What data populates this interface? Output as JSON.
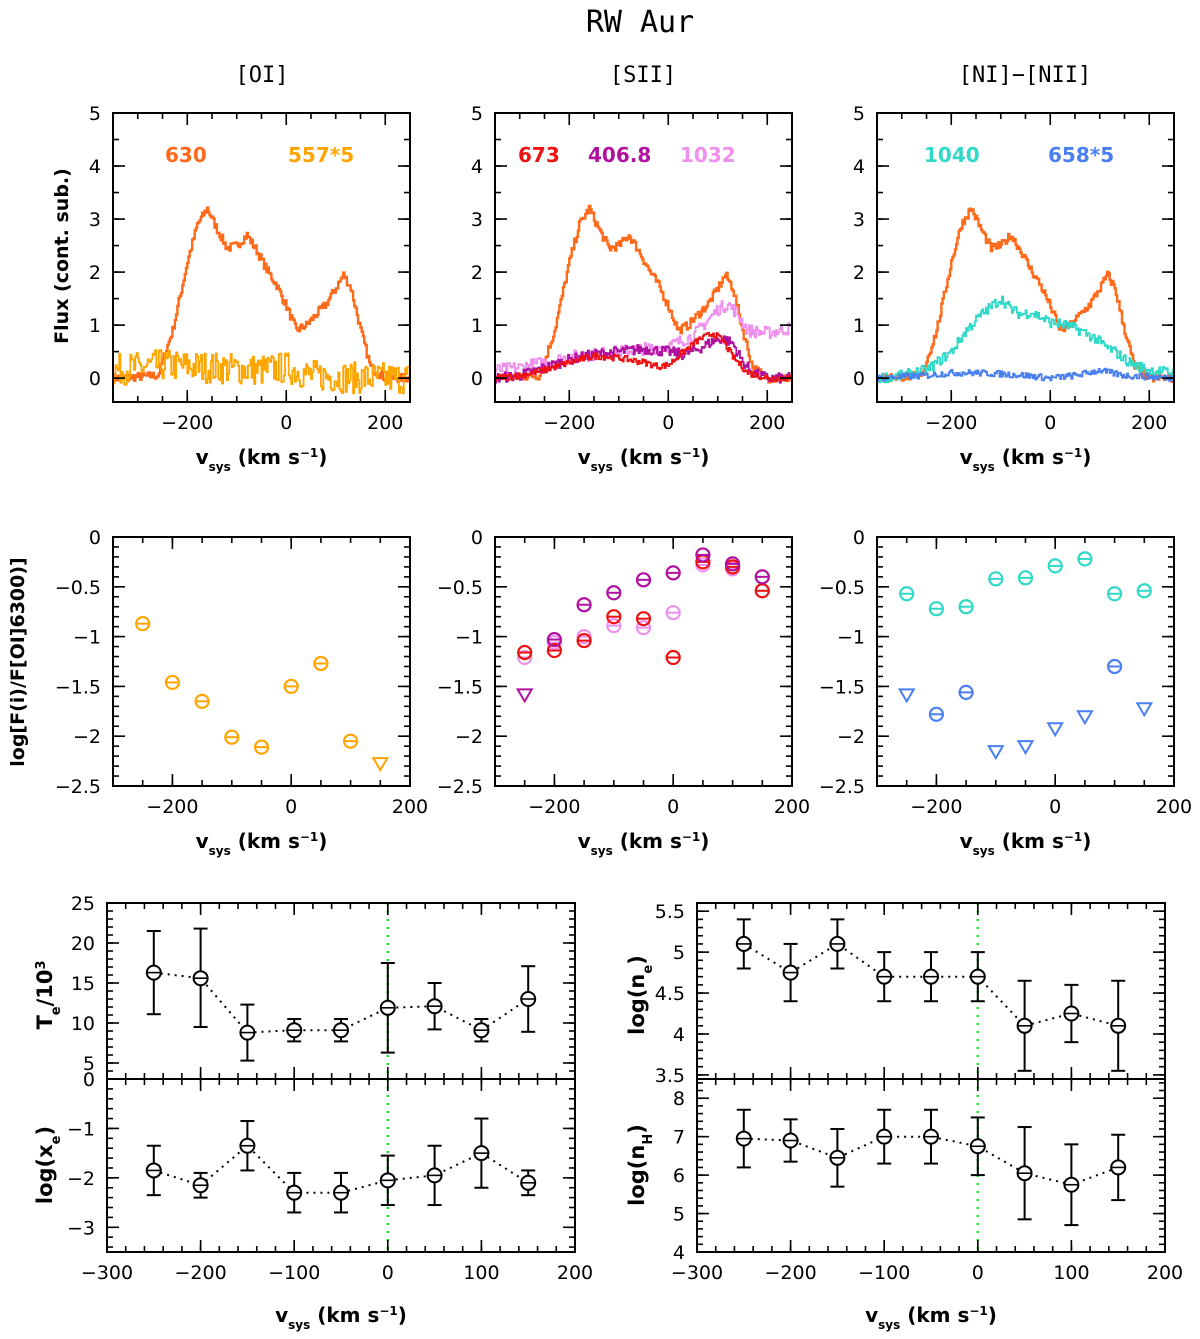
{
  "figure": {
    "title": "RW Aur",
    "columns": [
      "[OI]",
      "[SII]",
      "[NI]−[NII]"
    ],
    "xlabel_parts": {
      "v": "v",
      "sub": "sys",
      "unit": " (km s",
      "exp": "−1",
      "close": ")"
    },
    "spectra_ylabel": "Flux (cont. sub.)",
    "ratio_ylabel": "log[F(i)/F[OI]6300)]"
  },
  "colors": {
    "oi630": "#ff6a1a",
    "oi557": "#ffa500",
    "sii673": "#ee1111",
    "sii406": "#b0109e",
    "sii1032": "#ee90ee",
    "ni1040": "#30d8c8",
    "nii658": "#4a7ff0",
    "green": "#22dd22"
  },
  "chart_data": [
    {
      "type": "line",
      "panel": "spectra-oi",
      "title": "[OI]",
      "xlim": [
        -350,
        250
      ],
      "ylim": [
        -0.45,
        5
      ],
      "xticks": [
        -200,
        0,
        200
      ],
      "yticks": [
        0,
        1,
        2,
        3,
        4,
        5
      ],
      "xlabel": "vsys (km s−1)",
      "ylabel": "Flux (cont. sub.)",
      "series": [
        {
          "name": "630",
          "color": "#ff6a1a",
          "noise": 0.08,
          "x": [
            -350,
            -260,
            -230,
            -200,
            -180,
            -160,
            -140,
            -120,
            -100,
            -80,
            -60,
            -40,
            -20,
            0,
            20,
            40,
            60,
            80,
            100,
            115,
            130,
            150,
            170,
            200,
            250
          ],
          "y": [
            0,
            0.05,
            0.9,
            2.2,
            2.9,
            3.2,
            2.8,
            2.45,
            2.5,
            2.7,
            2.4,
            2.05,
            1.75,
            1.35,
            0.9,
            1.0,
            1.2,
            1.4,
            1.7,
            1.95,
            1.7,
            0.9,
            0.2,
            0,
            0
          ]
        },
        {
          "name": "557*5",
          "color": "#ffa500",
          "noise": 0.3,
          "x": [
            -350,
            -250,
            -150,
            -50,
            0,
            50,
            150,
            250
          ],
          "y": [
            0.15,
            0.25,
            0.2,
            0.15,
            0.2,
            0.05,
            0,
            0
          ]
        }
      ]
    },
    {
      "type": "line",
      "panel": "spectra-sii",
      "title": "[SII]",
      "xlim": [
        -350,
        250
      ],
      "ylim": [
        -0.45,
        5
      ],
      "xticks": [
        -200,
        0,
        200
      ],
      "yticks": [
        0,
        1,
        2,
        3,
        4,
        5
      ],
      "xlabel": "vsys (km s−1)",
      "ylabel": "",
      "series": [
        {
          "name": "630",
          "color": "#ff6a1a",
          "noise": 0.08,
          "x": [
            -350,
            -260,
            -230,
            -200,
            -180,
            -160,
            -140,
            -120,
            -100,
            -80,
            -60,
            -40,
            -20,
            0,
            20,
            40,
            60,
            80,
            100,
            115,
            130,
            150,
            170,
            200,
            250
          ],
          "y": [
            0,
            0.05,
            0.9,
            2.2,
            2.9,
            3.2,
            2.8,
            2.45,
            2.5,
            2.7,
            2.4,
            2.05,
            1.75,
            1.35,
            0.9,
            1.0,
            1.2,
            1.4,
            1.7,
            1.95,
            1.7,
            0.9,
            0.2,
            0,
            0
          ]
        },
        {
          "name": "1032",
          "color": "#ee90ee",
          "noise": 0.12,
          "x": [
            -350,
            -300,
            -250,
            -200,
            -150,
            -100,
            -50,
            0,
            50,
            80,
            100,
            120,
            140,
            160,
            200,
            250
          ],
          "y": [
            0.15,
            0.2,
            0.3,
            0.4,
            0.45,
            0.5,
            0.55,
            0.6,
            0.8,
            1.1,
            1.3,
            1.4,
            1.2,
            0.9,
            0.85,
            0.95
          ]
        },
        {
          "name": "406.8",
          "color": "#b0109e",
          "noise": 0.1,
          "x": [
            -350,
            -300,
            -250,
            -200,
            -150,
            -100,
            -50,
            0,
            30,
            60,
            90,
            110,
            130,
            150,
            170,
            200,
            250
          ],
          "y": [
            0,
            0.05,
            0.2,
            0.35,
            0.45,
            0.5,
            0.55,
            0.5,
            0.45,
            0.55,
            0.7,
            0.75,
            0.65,
            0.3,
            0.1,
            0,
            0
          ]
        },
        {
          "name": "673",
          "color": "#ee1111",
          "noise": 0.06,
          "x": [
            -350,
            -300,
            -250,
            -200,
            -150,
            -100,
            -50,
            -20,
            0,
            30,
            60,
            90,
            110,
            130,
            160,
            200,
            250
          ],
          "y": [
            0,
            0.05,
            0.15,
            0.3,
            0.42,
            0.38,
            0.3,
            0.22,
            0.25,
            0.5,
            0.72,
            0.85,
            0.7,
            0.4,
            0.1,
            0,
            0
          ]
        }
      ]
    },
    {
      "type": "line",
      "panel": "spectra-ni",
      "title": "[NI]−[NII]",
      "xlim": [
        -350,
        250
      ],
      "ylim": [
        -0.45,
        5
      ],
      "xticks": [
        -200,
        0,
        200
      ],
      "yticks": [
        0,
        1,
        2,
        3,
        4,
        5
      ],
      "xlabel": "vsys (km s−1)",
      "ylabel": "",
      "series": [
        {
          "name": "630",
          "color": "#ff6a1a",
          "noise": 0.08,
          "x": [
            -350,
            -260,
            -230,
            -200,
            -180,
            -160,
            -140,
            -120,
            -100,
            -80,
            -60,
            -40,
            -20,
            0,
            20,
            40,
            60,
            80,
            100,
            115,
            130,
            150,
            170,
            200,
            250
          ],
          "y": [
            0,
            0.05,
            0.9,
            2.2,
            2.9,
            3.2,
            2.8,
            2.45,
            2.5,
            2.7,
            2.4,
            2.05,
            1.75,
            1.35,
            0.9,
            1.0,
            1.2,
            1.4,
            1.7,
            1.95,
            1.7,
            0.9,
            0.2,
            0,
            0
          ]
        },
        {
          "name": "1040",
          "color": "#30d8c8",
          "noise": 0.1,
          "x": [
            -350,
            -300,
            -250,
            -200,
            -170,
            -140,
            -120,
            -100,
            -80,
            -60,
            -40,
            -20,
            0,
            30,
            60,
            90,
            110,
            130,
            150,
            170,
            200,
            250
          ],
          "y": [
            0,
            0.05,
            0.15,
            0.5,
            0.9,
            1.2,
            1.35,
            1.5,
            1.3,
            1.2,
            1.25,
            1.15,
            1.05,
            1.0,
            0.9,
            0.75,
            0.6,
            0.5,
            0.35,
            0.25,
            0.15,
            0.1
          ]
        },
        {
          "name": "658*5",
          "color": "#4a7ff0",
          "noise": 0.06,
          "x": [
            -350,
            -250,
            -200,
            -150,
            -100,
            -50,
            0,
            50,
            100,
            120,
            150,
            250
          ],
          "y": [
            0,
            0.05,
            0.1,
            0.1,
            0.08,
            0.05,
            0,
            0.05,
            0.15,
            0.1,
            0.05,
            0
          ]
        }
      ]
    },
    {
      "type": "scatter",
      "panel": "ratio-oi",
      "xlim": [
        -300,
        200
      ],
      "ylim": [
        -2.5,
        0
      ],
      "xticks": [
        -200,
        0,
        200
      ],
      "yticks": [
        0,
        -0.5,
        -1,
        -1.5,
        -2,
        -2.5
      ],
      "xlabel": "vsys (km s−1)",
      "ylabel": "log[F(i)/F[OI]6300)]",
      "series": [
        {
          "name": "557",
          "color": "#ffa500",
          "points": [
            [
              -250,
              -0.87
            ],
            [
              -200,
              -1.46
            ],
            [
              -150,
              -1.65
            ],
            [
              -100,
              -2.01
            ],
            [
              -50,
              -2.11
            ],
            [
              0,
              -1.5
            ],
            [
              50,
              -1.27
            ],
            [
              100,
              -2.05
            ]
          ],
          "upper_limits": [
            [
              150,
              -2.27
            ]
          ]
        }
      ]
    },
    {
      "type": "scatter",
      "panel": "ratio-sii",
      "xlim": [
        -300,
        200
      ],
      "ylim": [
        -2.5,
        0
      ],
      "xticks": [
        -200,
        0,
        200
      ],
      "yticks": [
        0,
        -0.5,
        -1,
        -1.5,
        -2,
        -2.5
      ],
      "xlabel": "vsys (km s−1)",
      "ylabel": "",
      "series": [
        {
          "name": "1032",
          "color": "#ee90ee",
          "points": [
            [
              -250,
              -1.21
            ],
            [
              -200,
              -1.06
            ],
            [
              -150,
              -1.0
            ],
            [
              -100,
              -0.89
            ],
            [
              -50,
              -0.91
            ],
            [
              0,
              -0.76
            ],
            [
              50,
              -0.28
            ],
            [
              100,
              -0.32
            ]
          ],
          "upper_limits": []
        },
        {
          "name": "673",
          "color": "#ee1111",
          "points": [
            [
              -250,
              -1.16
            ],
            [
              -200,
              -1.14
            ],
            [
              -150,
              -1.04
            ],
            [
              -100,
              -0.8
            ],
            [
              -50,
              -0.82
            ],
            [
              0,
              -1.21
            ],
            [
              50,
              -0.25
            ],
            [
              100,
              -0.3
            ],
            [
              150,
              -0.54
            ]
          ],
          "upper_limits": []
        },
        {
          "name": "406.8",
          "color": "#b0109e",
          "points": [
            [
              -200,
              -1.03
            ],
            [
              -150,
              -0.68
            ],
            [
              -100,
              -0.56
            ],
            [
              -50,
              -0.43
            ],
            [
              0,
              -0.36
            ],
            [
              50,
              -0.18
            ],
            [
              100,
              -0.27
            ],
            [
              150,
              -0.4
            ]
          ],
          "upper_limits": [
            [
              -250,
              -1.58
            ]
          ]
        }
      ]
    },
    {
      "type": "scatter",
      "panel": "ratio-ni",
      "xlim": [
        -300,
        200
      ],
      "ylim": [
        -2.5,
        0
      ],
      "xticks": [
        -200,
        0,
        200
      ],
      "yticks": [
        0,
        -0.5,
        -1,
        -1.5,
        -2,
        -2.5
      ],
      "xlabel": "vsys (km s−1)",
      "ylabel": "",
      "series": [
        {
          "name": "1040",
          "color": "#30d8c8",
          "points": [
            [
              -250,
              -0.57
            ],
            [
              -200,
              -0.72
            ],
            [
              -150,
              -0.7
            ],
            [
              -100,
              -0.42
            ],
            [
              -50,
              -0.41
            ],
            [
              0,
              -0.29
            ],
            [
              50,
              -0.22
            ],
            [
              100,
              -0.57
            ],
            [
              150,
              -0.54
            ]
          ],
          "upper_limits": []
        },
        {
          "name": "658",
          "color": "#4a7ff0",
          "points": [
            [
              -200,
              -1.78
            ],
            [
              -150,
              -1.56
            ],
            [
              100,
              -1.3
            ]
          ],
          "upper_limits": [
            [
              -250,
              -1.58
            ],
            [
              -100,
              -2.15
            ],
            [
              -50,
              -2.1
            ],
            [
              0,
              -1.92
            ],
            [
              50,
              -1.8
            ],
            [
              150,
              -1.72
            ]
          ]
        }
      ]
    },
    {
      "type": "scatter",
      "panel": "te",
      "ylabel": "Te/10³",
      "xlim": [
        -300,
        200
      ],
      "ylim": [
        3,
        25
      ],
      "yticks": [
        5,
        10,
        15,
        20,
        25
      ],
      "points": [
        [
          -250,
          16.3,
          11.1,
          21.5
        ],
        [
          -200,
          15.6,
          9.5,
          21.8
        ],
        [
          -150,
          8.8,
          5.3,
          12.3
        ],
        [
          -100,
          9.1,
          7.7,
          10.5
        ],
        [
          -50,
          9.1,
          7.7,
          10.5
        ],
        [
          0,
          11.9,
          6.3,
          17.5
        ],
        [
          50,
          12.1,
          9.2,
          15.0
        ],
        [
          100,
          9.1,
          7.7,
          10.5
        ],
        [
          150,
          13.0,
          8.9,
          17.1
        ]
      ]
    },
    {
      "type": "scatter",
      "panel": "xe",
      "ylabel": "log(xe)",
      "xlim": [
        -300,
        200
      ],
      "ylim": [
        -3.5,
        0
      ],
      "yticks": [
        0,
        -1,
        -2,
        -3
      ],
      "xlabel": "vsys (km s−1)",
      "xticks": [
        -300,
        -200,
        -100,
        0,
        100,
        200
      ],
      "points": [
        [
          -250,
          -1.85,
          -2.35,
          -1.35
        ],
        [
          -200,
          -2.15,
          -2.4,
          -1.9
        ],
        [
          -150,
          -1.35,
          -1.85,
          -0.85
        ],
        [
          -100,
          -2.3,
          -2.7,
          -1.9
        ],
        [
          -50,
          -2.3,
          -2.7,
          -1.9
        ],
        [
          0,
          -2.05,
          -2.55,
          -1.55
        ],
        [
          50,
          -1.95,
          -2.55,
          -1.35
        ],
        [
          100,
          -1.5,
          -2.2,
          -0.8
        ],
        [
          150,
          -2.1,
          -2.35,
          -1.85
        ]
      ]
    },
    {
      "type": "scatter",
      "panel": "ne",
      "ylabel": "log(ne)",
      "xlim": [
        -300,
        200
      ],
      "ylim": [
        3.45,
        5.6
      ],
      "yticks": [
        3.5,
        4,
        4.5,
        5,
        5.5
      ],
      "points": [
        [
          -250,
          5.1,
          4.8,
          5.4
        ],
        [
          -200,
          4.75,
          4.4,
          5.1
        ],
        [
          -150,
          5.1,
          4.8,
          5.4
        ],
        [
          -100,
          4.7,
          4.4,
          5.0
        ],
        [
          -50,
          4.7,
          4.4,
          5.0
        ],
        [
          0,
          4.7,
          4.4,
          5.0
        ],
        [
          50,
          4.1,
          3.55,
          4.65
        ],
        [
          100,
          4.25,
          3.9,
          4.6
        ],
        [
          150,
          4.1,
          3.55,
          4.65
        ]
      ]
    },
    {
      "type": "scatter",
      "panel": "nh",
      "ylabel": "log(nH)",
      "xlim": [
        -300,
        200
      ],
      "ylim": [
        4,
        8.5
      ],
      "yticks": [
        4,
        5,
        6,
        7,
        8
      ],
      "xlabel": "vsys (km s−1)",
      "xticks": [
        -300,
        -200,
        -100,
        0,
        100,
        200
      ],
      "points": [
        [
          -250,
          6.95,
          6.2,
          7.7
        ],
        [
          -200,
          6.9,
          6.35,
          7.45
        ],
        [
          -150,
          6.45,
          5.7,
          7.2
        ],
        [
          -100,
          7.0,
          6.3,
          7.7
        ],
        [
          -50,
          7.0,
          6.3,
          7.7
        ],
        [
          0,
          6.75,
          6.0,
          7.5
        ],
        [
          50,
          6.05,
          4.85,
          7.25
        ],
        [
          100,
          5.75,
          4.7,
          6.8
        ],
        [
          150,
          6.2,
          5.35,
          7.05
        ]
      ]
    }
  ]
}
